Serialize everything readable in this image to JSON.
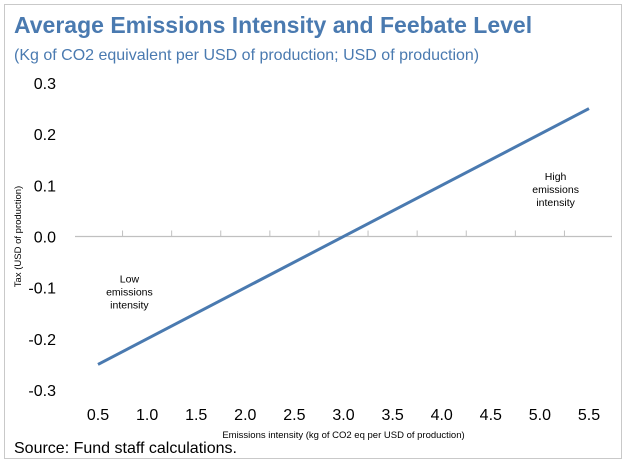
{
  "header": {
    "title": "Average Emissions Intensity and Feebate Level",
    "subtitle": "(Kg of CO2 equivalent per USD of production; USD of production)"
  },
  "footer": {
    "source": "Source: Fund staff calculations."
  },
  "colors": {
    "title": "#4a7ab0",
    "series": "#4a7ab0",
    "axis": "#c0c0c0"
  },
  "chart_data": {
    "type": "line",
    "title": "Average Emissions Intensity and Feebate Level",
    "subtitle": "(Kg of CO2 equivalent per USD of production; USD of production)",
    "xlabel": "Emissions intensity (kg of CO2 eq per USD of production)",
    "ylabel": "Tax (USD of production)",
    "xlim": [
      0.5,
      5.5
    ],
    "ylim": [
      -0.3,
      0.3
    ],
    "x_ticks": [
      "0.5",
      "1.0",
      "1.5",
      "2.0",
      "2.5",
      "3.0",
      "3.5",
      "4.0",
      "4.5",
      "5.0",
      "5.5"
    ],
    "y_ticks": [
      "0.3",
      "0.2",
      "0.1",
      "0.0",
      "-0.1",
      "-0.2",
      "-0.3"
    ],
    "grid": false,
    "series": [
      {
        "x": [
          0.5,
          5.5
        ],
        "y": [
          -0.25,
          0.25
        ]
      }
    ],
    "annotations": [
      {
        "lines": [
          "Low",
          "emissions",
          "intensity"
        ],
        "x": 0.82,
        "y": -0.09
      },
      {
        "lines": [
          "High",
          "emissions",
          "intensity"
        ],
        "x": 5.16,
        "y": 0.11
      }
    ]
  }
}
